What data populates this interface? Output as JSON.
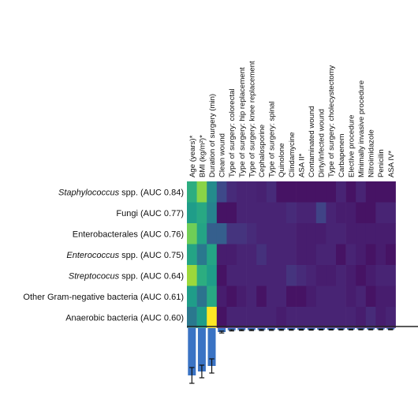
{
  "chart_data": {
    "type": "heatmap",
    "title": "",
    "columns": [
      "Age (years)*",
      "BMI (kg/m²)*",
      "Duration of surgery (min)",
      "Clean wound",
      "Type of surgery: colorectal",
      "Type of surgery: hip replacement",
      "Type of surgery: knee replacement",
      "Cephalosporine",
      "Type of surgery: spinal",
      "Quinolone",
      "Clindamycine",
      "ASA II*",
      "Contaminated wound",
      "Dirty/infected wound",
      "Type of surgery: cholecystectomy",
      "Carbapenem",
      "Elective procedure",
      "Minimally invasive procedure",
      "Nitroimidazole",
      "Penicilin",
      "ASA IV*"
    ],
    "rows": [
      {
        "organism": "Staphylococcus",
        "suffix": " spp. (AUC 0.84)",
        "italic": true
      },
      {
        "organism": "Fungi (AUC 0.77)",
        "suffix": "",
        "italic": false
      },
      {
        "organism": "Enterobacterales (AUC 0.76)",
        "suffix": "",
        "italic": false
      },
      {
        "organism": "Enterococcus",
        "suffix": " spp. (AUC 0.75)",
        "italic": true
      },
      {
        "organism": "Streptococus",
        "suffix": " spp. (AUC 0.64)",
        "italic": true
      },
      {
        "organism": "Other Gram-negative bacteria (AUC 0.61)",
        "suffix": "",
        "italic": false
      },
      {
        "organism": "Anaerobic bacteria (AUC 0.60)",
        "suffix": "",
        "italic": false
      }
    ],
    "values": [
      [
        0.62,
        0.82,
        0.48,
        0.22,
        0.12,
        0.1,
        0.1,
        0.09,
        0.12,
        0.05,
        0.05,
        0.05,
        0.05,
        0.05,
        0.05,
        0.1,
        0.05,
        0.1,
        0.05,
        0.05,
        0.05
      ],
      [
        0.55,
        0.6,
        0.45,
        0.05,
        0.05,
        0.1,
        0.1,
        0.1,
        0.1,
        0.1,
        0.12,
        0.1,
        0.1,
        0.2,
        0.1,
        0.08,
        0.08,
        0.05,
        0.05,
        0.1,
        0.1
      ],
      [
        0.78,
        0.58,
        0.3,
        0.3,
        0.15,
        0.15,
        0.12,
        0.1,
        0.1,
        0.1,
        0.1,
        0.08,
        0.08,
        0.08,
        0.1,
        0.1,
        0.08,
        0.08,
        0.08,
        0.08,
        0.08
      ],
      [
        0.58,
        0.4,
        0.58,
        0.08,
        0.08,
        0.1,
        0.1,
        0.14,
        0.1,
        0.1,
        0.1,
        0.08,
        0.08,
        0.1,
        0.1,
        0.05,
        0.1,
        0.08,
        0.05,
        0.08,
        0.05
      ],
      [
        0.85,
        0.62,
        0.55,
        0.05,
        0.1,
        0.1,
        0.1,
        0.1,
        0.1,
        0.1,
        0.15,
        0.12,
        0.1,
        0.08,
        0.08,
        0.1,
        0.08,
        0.05,
        0.08,
        0.1,
        0.1
      ],
      [
        0.55,
        0.38,
        0.6,
        0.08,
        0.05,
        0.08,
        0.1,
        0.05,
        0.1,
        0.1,
        0.05,
        0.05,
        0.08,
        0.1,
        0.1,
        0.1,
        0.08,
        0.1,
        0.05,
        0.08,
        0.08
      ],
      [
        0.4,
        0.55,
        1.0,
        0.05,
        0.1,
        0.1,
        0.1,
        0.1,
        0.1,
        0.08,
        0.1,
        0.1,
        0.1,
        0.1,
        0.1,
        0.1,
        0.1,
        0.08,
        0.12,
        0.08,
        0.1
      ]
    ],
    "bar_values": [
      0.6,
      0.55,
      0.48,
      0.05,
      0.028,
      0.026,
      0.025,
      0.024,
      0.023,
      0.022,
      0.021,
      0.02,
      0.02,
      0.019,
      0.019,
      0.018,
      0.018,
      0.017,
      0.017,
      0.016,
      0.016
    ],
    "bar_errors": [
      0.1,
      0.08,
      0.09,
      0.012,
      0.008,
      0.007,
      0.007,
      0.007,
      0.006,
      0.006,
      0.006,
      0.006,
      0.006,
      0.005,
      0.005,
      0.005,
      0.005,
      0.005,
      0.005,
      0.005,
      0.005
    ],
    "colormap": "viridis",
    "bar_color": "#3a73c4",
    "grid": false
  }
}
